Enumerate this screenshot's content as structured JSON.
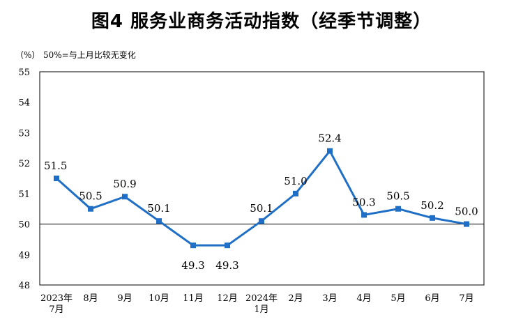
{
  "title": "图4  服务业商务活动指数（经季节调整）",
  "unit_label": "（%）",
  "note": "50%=与上月比较无变化",
  "chart_data": {
    "type": "line",
    "title": "图4  服务业商务活动指数（经季节调整）",
    "ylabel": "（%）",
    "ylim": [
      48,
      55
    ],
    "yticks": [
      48,
      49,
      50,
      51,
      52,
      53,
      54,
      55
    ],
    "reference_line": 50,
    "categories": [
      [
        "2023年",
        "7月"
      ],
      [
        "8月"
      ],
      [
        "9月"
      ],
      [
        "10月"
      ],
      [
        "11月"
      ],
      [
        "12月"
      ],
      [
        "2024年",
        "1月"
      ],
      [
        "2月"
      ],
      [
        "3月"
      ],
      [
        "4月"
      ],
      [
        "5月"
      ],
      [
        "6月"
      ],
      [
        "7月"
      ]
    ],
    "series": [
      {
        "name": "",
        "values": [
          51.5,
          50.5,
          50.9,
          50.1,
          49.3,
          49.3,
          50.1,
          51.0,
          52.4,
          50.3,
          50.5,
          50.2,
          50.0
        ],
        "labels": [
          "51.5",
          "50.5",
          "50.9",
          "50.1",
          "49.3",
          "49.3",
          "50.1",
          "51.0",
          "52.4",
          "50.3",
          "50.5",
          "50.2",
          "50.0"
        ]
      }
    ],
    "line_color": "#1f6fc7",
    "grid": false
  }
}
